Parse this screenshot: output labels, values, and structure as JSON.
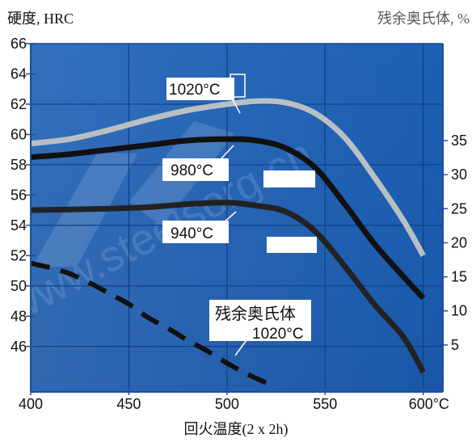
{
  "chart_data": {
    "type": "line",
    "left_axis_title": "硬度, HRC",
    "right_axis_title": "残余奥氏体, %",
    "xlabel": "回火温度(2 x 2h)",
    "x_ticks": [
      400,
      450,
      500,
      550,
      600
    ],
    "x_tick_labels": [
      "400",
      "450",
      "500",
      "550",
      "600°C"
    ],
    "xlim": [
      400,
      610
    ],
    "ylim_left": [
      43,
      66
    ],
    "y_left_ticks": [
      46,
      48,
      50,
      52,
      54,
      56,
      58,
      60,
      62,
      64,
      66
    ],
    "y_left_tick_labels": [
      "46",
      "48",
      "50",
      "52",
      "54",
      "56",
      "58",
      "60",
      "62",
      "64",
      "66"
    ],
    "y_right_ticks": [
      5,
      10,
      15,
      20,
      25,
      30,
      35
    ],
    "y_right_tick_labels": [
      "5",
      "10",
      "15",
      "20",
      "25",
      "30",
      "35"
    ],
    "y_right_to_left": {
      "right_value_a": 5,
      "left_value_a": 46.1,
      "right_value_b": 35,
      "left_value_b": 59.6
    },
    "grid": true,
    "background_color": "#1a5bb0",
    "axis_color": "#1a4e9c",
    "series": [
      {
        "name": "1020°C",
        "axis": "left",
        "color": "#b9bfc4",
        "style": "solid",
        "x": [
          400,
          420,
          440,
          460,
          480,
          500,
          515,
          530,
          545,
          560,
          575,
          590,
          600
        ],
        "y": [
          59.4,
          59.7,
          60.3,
          61.0,
          61.6,
          62.0,
          62.2,
          62.1,
          61.4,
          59.8,
          57.2,
          54.3,
          52.0
        ]
      },
      {
        "name": "980°C",
        "axis": "left",
        "color": "#111111",
        "style": "solid",
        "x": [
          400,
          420,
          440,
          460,
          480,
          500,
          515,
          530,
          545,
          560,
          575,
          590,
          600
        ],
        "y": [
          58.5,
          58.7,
          59.0,
          59.3,
          59.6,
          59.7,
          59.6,
          59.1,
          57.8,
          55.4,
          52.8,
          50.6,
          49.2
        ]
      },
      {
        "name": "940°C",
        "axis": "left",
        "color": "#222222",
        "style": "solid",
        "x": [
          400,
          420,
          440,
          460,
          480,
          500,
          515,
          530,
          545,
          560,
          575,
          590,
          600
        ],
        "y": [
          55.0,
          55.05,
          55.1,
          55.2,
          55.4,
          55.5,
          55.3,
          54.9,
          53.6,
          51.3,
          48.8,
          46.6,
          44.3
        ]
      },
      {
        "name": "残余奥氏体 1020°C",
        "axis": "left",
        "color": "#111111",
        "style": "dashed",
        "x": [
          400,
          410,
          420,
          430,
          440,
          450,
          460,
          470,
          480,
          490,
          500,
          510,
          520
        ],
        "y": [
          51.5,
          51.2,
          50.8,
          50.2,
          49.5,
          48.8,
          47.9,
          47.2,
          46.4,
          45.7,
          44.9,
          44.2,
          43.6
        ]
      }
    ],
    "annotations": [
      {
        "text": "1020°C",
        "target": "1020°C curve"
      },
      {
        "text": "980°C",
        "target": "980°C curve"
      },
      {
        "text": "940°C",
        "target": "940°C curve"
      },
      {
        "text": "残余奥氏体",
        "target": "dashed curve"
      },
      {
        "text": "1020°C",
        "target": "dashed curve"
      }
    ],
    "watermark": "www.steelsorg.cn"
  }
}
